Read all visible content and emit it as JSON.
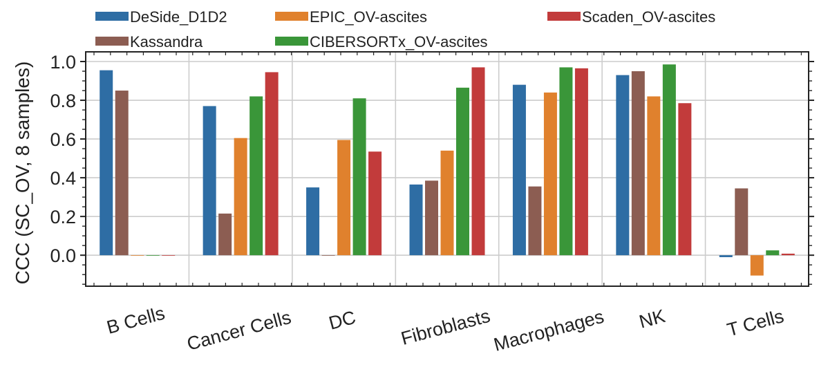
{
  "chart_data": {
    "type": "bar",
    "categories": [
      "B Cells",
      "Cancer Cells",
      "DC",
      "Fibroblasts",
      "Macrophages",
      "NK",
      "T Cells"
    ],
    "series": [
      {
        "name": "DeSide_D1D2",
        "color": "#2e6da4",
        "values": [
          0.955,
          0.77,
          0.35,
          0.365,
          0.88,
          0.93,
          -0.01
        ]
      },
      {
        "name": "Kassandra",
        "color": "#8c5d52",
        "values": [
          0.85,
          0.215,
          0.0,
          0.385,
          0.355,
          0.95,
          0.345
        ]
      },
      {
        "name": "EPIC_OV-ascites",
        "color": "#e0812d",
        "values": [
          0.0,
          0.605,
          0.595,
          0.54,
          0.84,
          0.82,
          -0.105
        ]
      },
      {
        "name": "CIBERSORTx_OV-ascites",
        "color": "#3a9639",
        "values": [
          0.0,
          0.82,
          0.81,
          0.865,
          0.97,
          0.985,
          0.025
        ]
      },
      {
        "name": "Scaden_OV-ascites",
        "color": "#c23b3b",
        "values": [
          0.0,
          0.945,
          0.535,
          0.97,
          0.965,
          0.785,
          0.008
        ]
      }
    ],
    "ylabel": "CCC (SC_OV, 8 samples)",
    "xlabel": "",
    "ylim": [
      -0.16,
      1.05
    ],
    "yticks": [
      0.0,
      0.2,
      0.4,
      0.6,
      0.8,
      1.0
    ],
    "ytick_labels": [
      "0.0",
      "0.2",
      "0.4",
      "0.6",
      "0.8",
      "1.0"
    ],
    "grid": true,
    "legend_position": "top, above plot, 3 columns",
    "xtick_rotation": -15
  }
}
